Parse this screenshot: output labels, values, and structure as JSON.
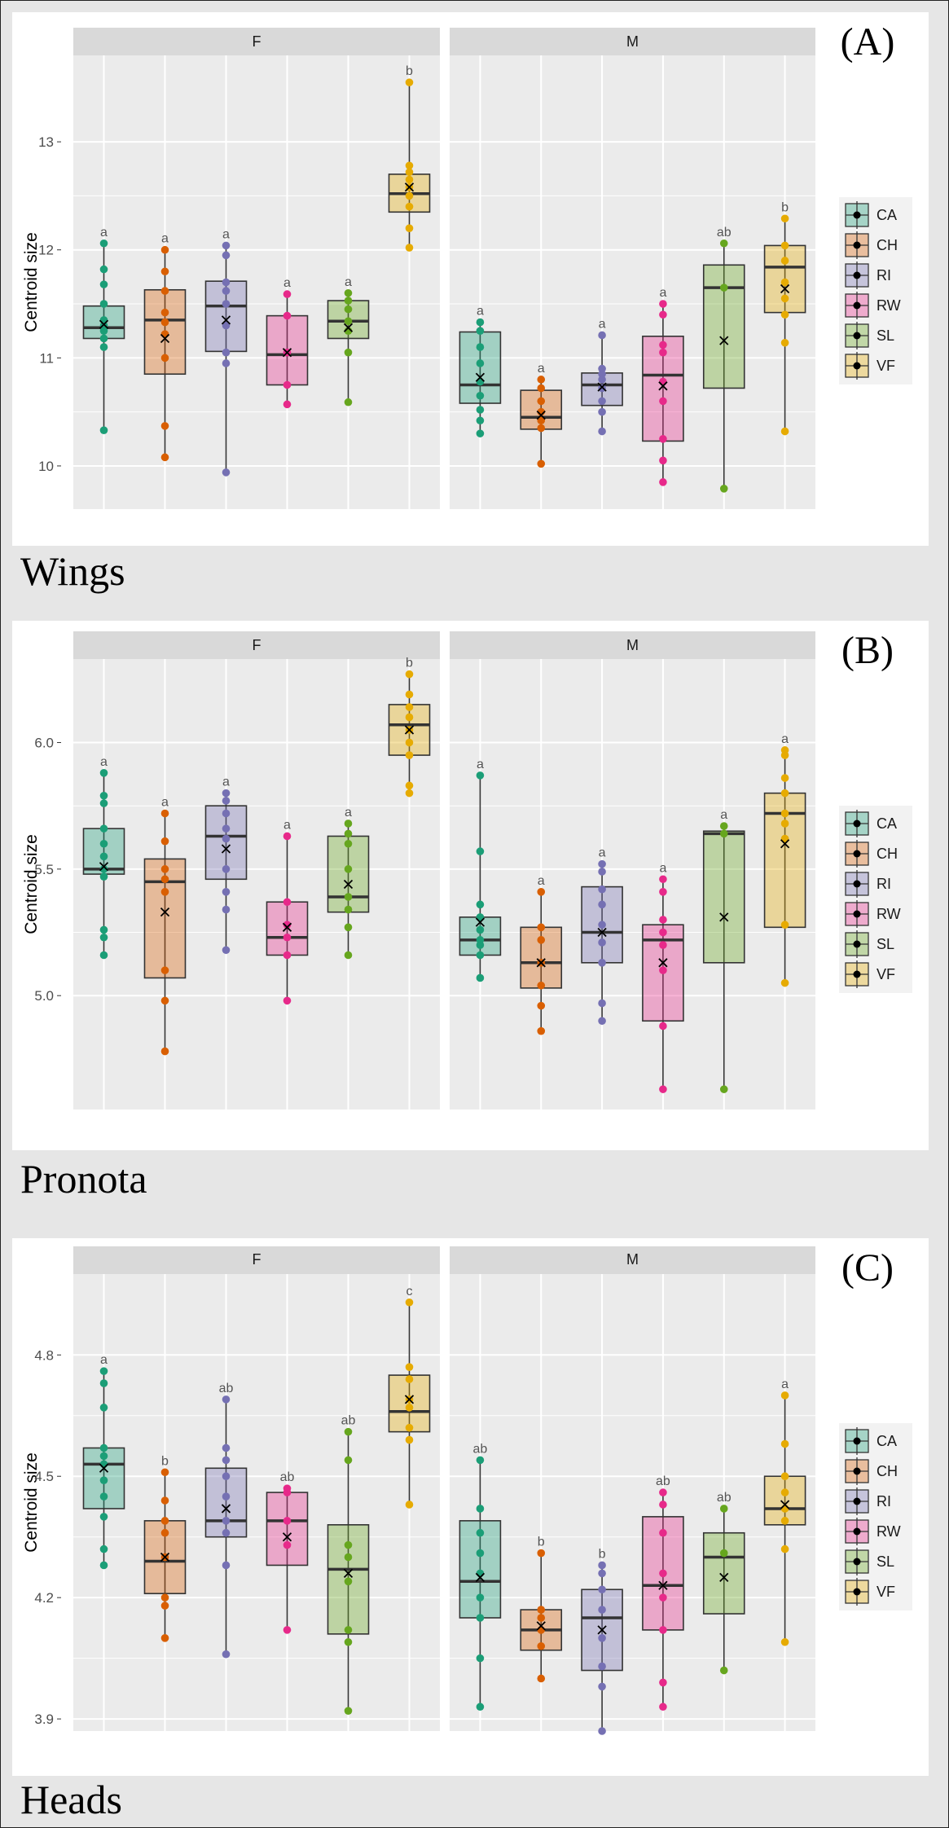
{
  "chart_data": [
    {
      "type": "box",
      "panel_letter": "(A)",
      "section_title": "Wings",
      "ylabel": "Centroid size",
      "ylim": [
        9.6,
        13.8
      ],
      "yticks": [
        10,
        11,
        12,
        13
      ],
      "ytick_labels": [
        "10",
        "11",
        "12",
        "13"
      ],
      "facets": [
        "F",
        "M"
      ],
      "legend": [
        "CA",
        "CH",
        "RI",
        "RW",
        "SL",
        "VF"
      ],
      "groups": {
        "F": [
          {
            "name": "CA",
            "q1": 11.18,
            "median": 11.28,
            "q3": 11.48,
            "min": 10.33,
            "max": 12.06,
            "mean": 11.31,
            "letter": "a",
            "points": [
              10.33,
              11.1,
              11.18,
              11.25,
              11.3,
              11.35,
              11.5,
              11.68,
              11.82,
              12.06
            ]
          },
          {
            "name": "CH",
            "q1": 10.85,
            "median": 11.35,
            "q3": 11.63,
            "min": 10.08,
            "max": 12.0,
            "mean": 11.18,
            "letter": "a",
            "points": [
              10.08,
              10.37,
              11.0,
              11.22,
              11.33,
              11.42,
              11.62,
              11.8,
              12.0
            ]
          },
          {
            "name": "RI",
            "q1": 11.06,
            "median": 11.48,
            "q3": 11.71,
            "min": 9.94,
            "max": 12.04,
            "mean": 11.35,
            "letter": "a",
            "points": [
              9.94,
              10.95,
              11.05,
              11.3,
              11.5,
              11.62,
              11.7,
              11.95,
              12.04
            ]
          },
          {
            "name": "RW",
            "q1": 10.75,
            "median": 11.03,
            "q3": 11.39,
            "min": 10.57,
            "max": 11.59,
            "mean": 11.05,
            "letter": "a",
            "points": [
              10.57,
              10.75,
              11.05,
              11.39,
              11.59
            ]
          },
          {
            "name": "SL",
            "q1": 11.18,
            "median": 11.34,
            "q3": 11.53,
            "min": 10.59,
            "max": 11.6,
            "mean": 11.28,
            "letter": "a",
            "points": [
              10.59,
              11.05,
              11.25,
              11.34,
              11.45,
              11.53,
              11.6
            ]
          },
          {
            "name": "VF",
            "q1": 12.35,
            "median": 12.52,
            "q3": 12.7,
            "min": 12.02,
            "max": 13.55,
            "mean": 12.58,
            "letter": "b",
            "points": [
              12.02,
              12.2,
              12.4,
              12.5,
              12.58,
              12.65,
              12.72,
              12.78,
              13.55
            ]
          }
        ],
        "M": [
          {
            "name": "CA",
            "q1": 10.58,
            "median": 10.75,
            "q3": 11.24,
            "min": 10.3,
            "max": 11.33,
            "mean": 10.82,
            "letter": "a",
            "points": [
              10.3,
              10.42,
              10.52,
              10.65,
              10.78,
              10.95,
              11.1,
              11.25,
              11.33
            ]
          },
          {
            "name": "CH",
            "q1": 10.34,
            "median": 10.45,
            "q3": 10.7,
            "min": 10.02,
            "max": 10.8,
            "mean": 10.47,
            "letter": "a",
            "points": [
              10.02,
              10.35,
              10.42,
              10.5,
              10.6,
              10.72,
              10.8
            ]
          },
          {
            "name": "RI",
            "q1": 10.56,
            "median": 10.75,
            "q3": 10.86,
            "min": 10.32,
            "max": 11.21,
            "mean": 10.73,
            "letter": "a",
            "points": [
              10.32,
              10.5,
              10.6,
              10.72,
              10.8,
              10.85,
              10.9,
              11.21
            ]
          },
          {
            "name": "RW",
            "q1": 10.23,
            "median": 10.84,
            "q3": 11.2,
            "min": 9.85,
            "max": 11.5,
            "mean": 10.74,
            "letter": "a",
            "points": [
              9.85,
              10.05,
              10.25,
              10.6,
              10.78,
              11.05,
              11.12,
              11.4,
              11.5
            ]
          },
          {
            "name": "SL",
            "q1": 10.72,
            "median": 11.65,
            "q3": 11.86,
            "min": 9.79,
            "max": 12.06,
            "mean": 11.16,
            "letter": "ab",
            "points": [
              9.79,
              11.65,
              12.06
            ]
          },
          {
            "name": "VF",
            "q1": 11.42,
            "median": 11.84,
            "q3": 12.04,
            "min": 10.32,
            "max": 12.29,
            "mean": 11.64,
            "letter": "b",
            "points": [
              10.32,
              11.14,
              11.4,
              11.55,
              11.7,
              11.9,
              12.04,
              12.29
            ]
          }
        ]
      }
    },
    {
      "type": "box",
      "panel_letter": "(B)",
      "section_title": "Pronota",
      "ylabel": "Centroid size",
      "ylim": [
        4.55,
        6.33
      ],
      "yticks": [
        5.0,
        5.5,
        6.0
      ],
      "ytick_labels": [
        "5.0",
        "5.5",
        "6.0"
      ],
      "facets": [
        "F",
        "M"
      ],
      "legend": [
        "CA",
        "CH",
        "RI",
        "RW",
        "SL",
        "VF"
      ],
      "groups": {
        "F": [
          {
            "name": "CA",
            "q1": 5.48,
            "median": 5.5,
            "q3": 5.66,
            "min": 5.16,
            "max": 5.88,
            "mean": 5.51,
            "letter": "a",
            "points": [
              5.16,
              5.23,
              5.26,
              5.47,
              5.5,
              5.55,
              5.6,
              5.66,
              5.76,
              5.79,
              5.88
            ]
          },
          {
            "name": "CH",
            "q1": 5.07,
            "median": 5.45,
            "q3": 5.54,
            "min": 4.78,
            "max": 5.72,
            "mean": 5.33,
            "letter": "a",
            "points": [
              4.78,
              4.98,
              5.1,
              5.41,
              5.46,
              5.5,
              5.61,
              5.72
            ]
          },
          {
            "name": "RI",
            "q1": 5.46,
            "median": 5.63,
            "q3": 5.75,
            "min": 5.18,
            "max": 5.8,
            "mean": 5.58,
            "letter": "a",
            "points": [
              5.18,
              5.34,
              5.41,
              5.5,
              5.62,
              5.66,
              5.72,
              5.77,
              5.8
            ]
          },
          {
            "name": "RW",
            "q1": 5.16,
            "median": 5.23,
            "q3": 5.37,
            "min": 4.98,
            "max": 5.63,
            "mean": 5.27,
            "letter": "a",
            "points": [
              4.98,
              5.16,
              5.23,
              5.28,
              5.37,
              5.63
            ]
          },
          {
            "name": "SL",
            "q1": 5.33,
            "median": 5.39,
            "q3": 5.63,
            "min": 5.16,
            "max": 5.68,
            "mean": 5.44,
            "letter": "a",
            "points": [
              5.16,
              5.27,
              5.34,
              5.39,
              5.5,
              5.6,
              5.64,
              5.68
            ]
          },
          {
            "name": "VF",
            "q1": 5.95,
            "median": 6.07,
            "q3": 6.15,
            "min": 5.8,
            "max": 6.27,
            "mean": 6.05,
            "letter": "b",
            "points": [
              5.8,
              5.83,
              5.95,
              6.0,
              6.05,
              6.1,
              6.14,
              6.19,
              6.27
            ]
          }
        ],
        "M": [
          {
            "name": "CA",
            "q1": 5.16,
            "median": 5.22,
            "q3": 5.31,
            "min": 5.07,
            "max": 5.87,
            "mean": 5.29,
            "letter": "a",
            "points": [
              5.07,
              5.16,
              5.2,
              5.22,
              5.26,
              5.31,
              5.36,
              5.57,
              5.87
            ]
          },
          {
            "name": "CH",
            "q1": 5.03,
            "median": 5.13,
            "q3": 5.27,
            "min": 4.86,
            "max": 5.41,
            "mean": 5.13,
            "letter": "a",
            "points": [
              4.86,
              4.96,
              5.04,
              5.13,
              5.22,
              5.27,
              5.41
            ]
          },
          {
            "name": "RI",
            "q1": 5.13,
            "median": 5.25,
            "q3": 5.43,
            "min": 4.9,
            "max": 5.52,
            "mean": 5.25,
            "letter": "a",
            "points": [
              4.9,
              4.97,
              5.13,
              5.21,
              5.28,
              5.36,
              5.42,
              5.49,
              5.52
            ]
          },
          {
            "name": "RW",
            "q1": 4.9,
            "median": 5.22,
            "q3": 5.28,
            "min": 4.63,
            "max": 5.46,
            "mean": 5.13,
            "letter": "a",
            "points": [
              4.63,
              4.88,
              5.1,
              5.2,
              5.25,
              5.3,
              5.41,
              5.46
            ]
          },
          {
            "name": "SL",
            "q1": 5.13,
            "median": 5.64,
            "q3": 5.65,
            "min": 4.63,
            "max": 5.67,
            "mean": 5.31,
            "letter": "a",
            "points": [
              4.63,
              5.64,
              5.67
            ]
          },
          {
            "name": "VF",
            "q1": 5.27,
            "median": 5.72,
            "q3": 5.8,
            "min": 5.05,
            "max": 5.97,
            "mean": 5.6,
            "letter": "a",
            "points": [
              5.05,
              5.28,
              5.62,
              5.68,
              5.72,
              5.8,
              5.86,
              5.95,
              5.97
            ]
          }
        ]
      }
    },
    {
      "type": "box",
      "panel_letter": "(C)",
      "section_title": "Heads",
      "ylabel": "Centroid size",
      "ylim": [
        3.87,
        5.0
      ],
      "yticks": [
        3.9,
        4.2,
        4.5,
        4.8
      ],
      "ytick_labels": [
        "3.9",
        "4.2",
        "4.5",
        "4.8"
      ],
      "facets": [
        "F",
        "M"
      ],
      "legend": [
        "CA",
        "CH",
        "RI",
        "RW",
        "SL",
        "VF"
      ],
      "groups": {
        "F": [
          {
            "name": "CA",
            "q1": 4.42,
            "median": 4.53,
            "q3": 4.57,
            "min": 4.28,
            "max": 4.76,
            "mean": 4.52,
            "letter": "a",
            "points": [
              4.28,
              4.32,
              4.4,
              4.45,
              4.49,
              4.53,
              4.55,
              4.57,
              4.67,
              4.73,
              4.76
            ]
          },
          {
            "name": "CH",
            "q1": 4.21,
            "median": 4.29,
            "q3": 4.39,
            "min": 4.1,
            "max": 4.51,
            "mean": 4.3,
            "letter": "b",
            "points": [
              4.1,
              4.18,
              4.2,
              4.3,
              4.36,
              4.39,
              4.44,
              4.51
            ]
          },
          {
            "name": "RI",
            "q1": 4.35,
            "median": 4.39,
            "q3": 4.52,
            "min": 4.06,
            "max": 4.69,
            "mean": 4.42,
            "letter": "ab",
            "points": [
              4.06,
              4.28,
              4.36,
              4.39,
              4.45,
              4.5,
              4.54,
              4.57,
              4.69
            ]
          },
          {
            "name": "RW",
            "q1": 4.28,
            "median": 4.39,
            "q3": 4.46,
            "min": 4.12,
            "max": 4.47,
            "mean": 4.35,
            "letter": "ab",
            "points": [
              4.12,
              4.33,
              4.39,
              4.46,
              4.47
            ]
          },
          {
            "name": "SL",
            "q1": 4.11,
            "median": 4.27,
            "q3": 4.38,
            "min": 3.92,
            "max": 4.61,
            "mean": 4.26,
            "letter": "ab",
            "points": [
              3.92,
              4.09,
              4.12,
              4.24,
              4.3,
              4.33,
              4.54,
              4.61
            ]
          },
          {
            "name": "VF",
            "q1": 4.61,
            "median": 4.66,
            "q3": 4.75,
            "min": 4.43,
            "max": 4.93,
            "mean": 4.69,
            "letter": "c",
            "points": [
              4.43,
              4.59,
              4.62,
              4.67,
              4.69,
              4.74,
              4.77,
              4.93
            ]
          }
        ],
        "M": [
          {
            "name": "CA",
            "q1": 4.15,
            "median": 4.24,
            "q3": 4.39,
            "min": 3.93,
            "max": 4.54,
            "mean": 4.25,
            "letter": "ab",
            "points": [
              3.93,
              4.05,
              4.15,
              4.2,
              4.26,
              4.31,
              4.36,
              4.42,
              4.54
            ]
          },
          {
            "name": "CH",
            "q1": 4.07,
            "median": 4.12,
            "q3": 4.17,
            "min": 4.0,
            "max": 4.31,
            "mean": 4.13,
            "letter": "b",
            "points": [
              4.0,
              4.08,
              4.12,
              4.15,
              4.17,
              4.31
            ]
          },
          {
            "name": "RI",
            "q1": 4.02,
            "median": 4.15,
            "q3": 4.22,
            "min": 3.87,
            "max": 4.28,
            "mean": 4.12,
            "letter": "b",
            "points": [
              3.87,
              3.98,
              4.03,
              4.1,
              4.17,
              4.22,
              4.26,
              4.28
            ]
          },
          {
            "name": "RW",
            "q1": 4.12,
            "median": 4.23,
            "q3": 4.4,
            "min": 3.93,
            "max": 4.46,
            "mean": 4.23,
            "letter": "ab",
            "points": [
              3.93,
              3.99,
              4.12,
              4.2,
              4.26,
              4.36,
              4.43,
              4.46
            ]
          },
          {
            "name": "SL",
            "q1": 4.16,
            "median": 4.3,
            "q3": 4.36,
            "min": 4.02,
            "max": 4.42,
            "mean": 4.25,
            "letter": "ab",
            "points": [
              4.02,
              4.31,
              4.42
            ]
          },
          {
            "name": "VF",
            "q1": 4.38,
            "median": 4.42,
            "q3": 4.5,
            "min": 4.09,
            "max": 4.7,
            "mean": 4.43,
            "letter": "a",
            "points": [
              4.09,
              4.32,
              4.39,
              4.42,
              4.46,
              4.5,
              4.58,
              4.7
            ]
          }
        ]
      }
    }
  ],
  "colors": {
    "CA": "#1b9e77",
    "CH": "#d95f02",
    "RI": "#7570b3",
    "RW": "#e7298a",
    "SL": "#66a61e",
    "VF": "#e6ab02",
    "plot_bg": "#ebebeb",
    "strip_bg": "#d9d9d9",
    "grid": "#ffffff",
    "box_line": "#333333"
  }
}
